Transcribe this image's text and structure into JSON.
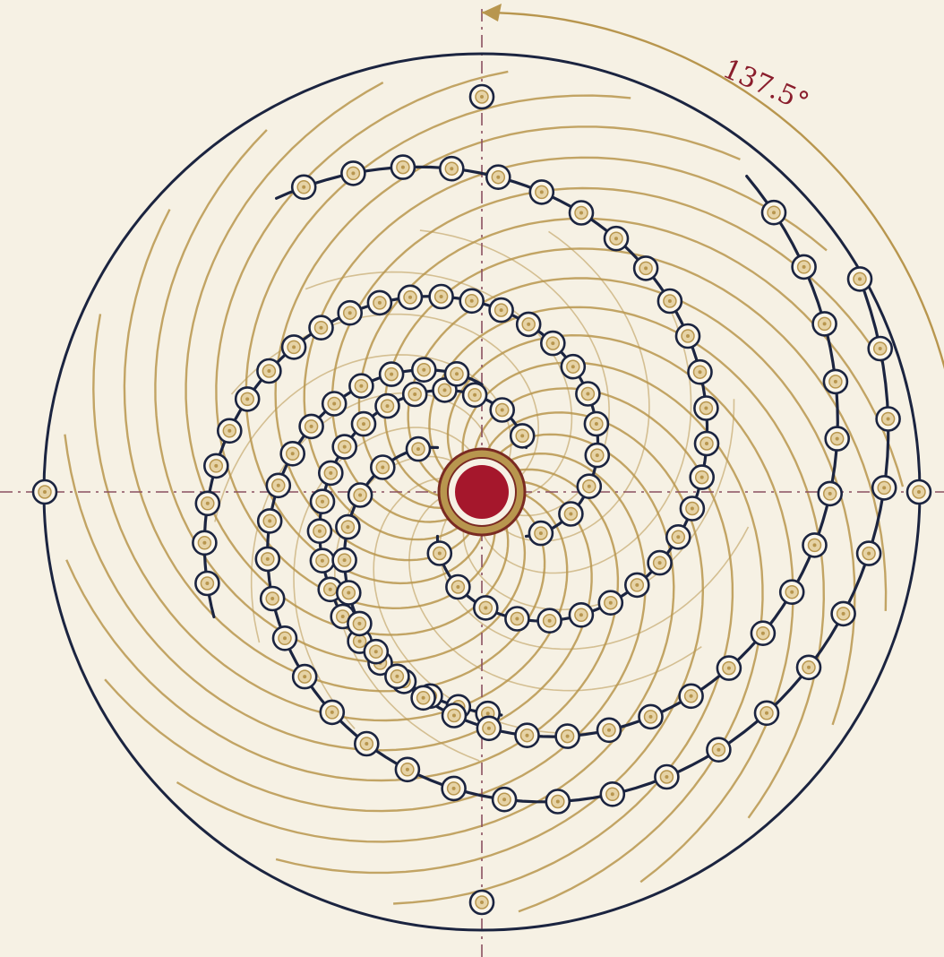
{
  "angle_label": "137.5°",
  "colors": {
    "background": "#f6f1e4",
    "navy": "#1b2440",
    "gold": "#b8964e",
    "crimson": "#a5172c",
    "axis": "#8a5060",
    "seed_fill": "#e6d3a6",
    "seed_ring": "#fbf6ea"
  },
  "icons": {
    "seed": "seed-dot-icon",
    "center": "center-bud-icon",
    "arrow": "arrow-head-icon"
  }
}
